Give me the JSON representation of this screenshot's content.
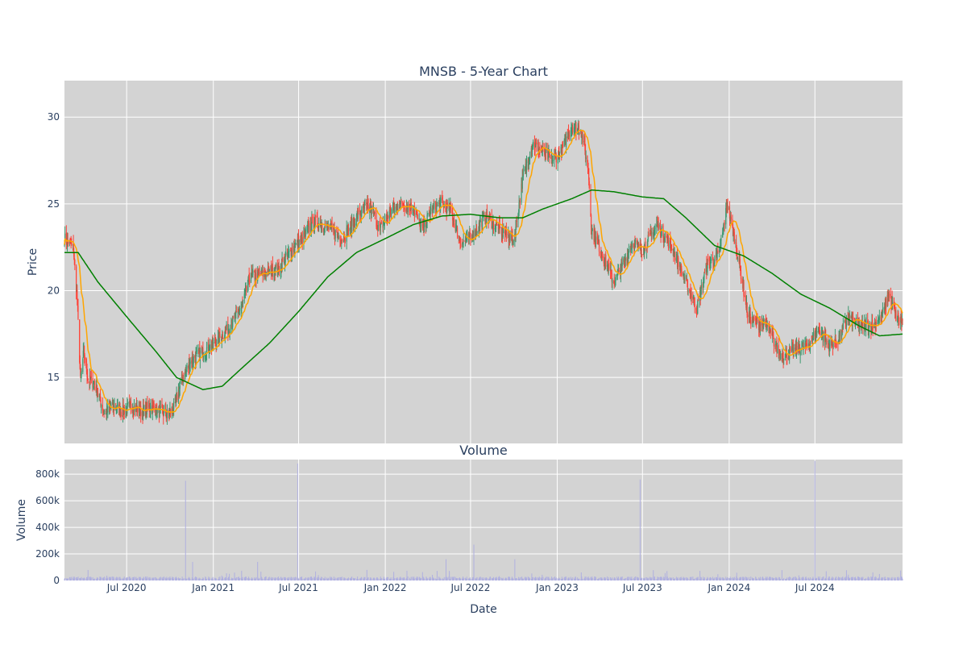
{
  "chart_data": [
    {
      "type": "candlestick",
      "title": "MNSB - 5-Year Chart",
      "ylabel": "Price",
      "x_range": [
        "2020-02-20",
        "2025-01-03"
      ],
      "ylim": [
        11.2,
        32.1
      ],
      "yticks": [
        15,
        20,
        25,
        30
      ],
      "x_tick_dates": [
        "2020-07-01",
        "2021-01-01",
        "2021-07-01",
        "2022-01-01",
        "2022-07-01",
        "2023-01-01",
        "2023-07-01",
        "2024-01-01",
        "2024-07-01"
      ],
      "grid": true,
      "colors": {
        "increasing": "#3d9970",
        "decreasing": "#ff4136",
        "ma_short": "#ffa500",
        "ma_long": "#008000",
        "background": "#d3d3d3",
        "grid": "#ffffff"
      },
      "close_path": [
        [
          "2020-02-20",
          23.0
        ],
        [
          "2020-03-01",
          22.8
        ],
        [
          "2020-03-10",
          22.4
        ],
        [
          "2020-03-18",
          19.5
        ],
        [
          "2020-03-25",
          14.8
        ],
        [
          "2020-04-01",
          16.5
        ],
        [
          "2020-04-10",
          14.9
        ],
        [
          "2020-04-25",
          14.6
        ],
        [
          "2020-05-15",
          12.9
        ],
        [
          "2020-06-01",
          13.4
        ],
        [
          "2020-06-20",
          13.0
        ],
        [
          "2020-07-10",
          13.4
        ],
        [
          "2020-08-01",
          13.0
        ],
        [
          "2020-08-20",
          13.3
        ],
        [
          "2020-09-10",
          13.0
        ],
        [
          "2020-09-25",
          12.8
        ],
        [
          "2020-10-10",
          13.3
        ],
        [
          "2020-10-25",
          14.8
        ],
        [
          "2020-11-15",
          16.0
        ],
        [
          "2020-12-10",
          16.5
        ],
        [
          "2021-01-05",
          17.0
        ],
        [
          "2021-02-01",
          17.8
        ],
        [
          "2021-03-01",
          19.0
        ],
        [
          "2021-03-20",
          20.8
        ],
        [
          "2021-04-20",
          21.0
        ],
        [
          "2021-05-20",
          21.3
        ],
        [
          "2021-06-20",
          22.5
        ],
        [
          "2021-07-10",
          23.0
        ],
        [
          "2021-08-01",
          24.0
        ],
        [
          "2021-09-01",
          23.7
        ],
        [
          "2021-10-01",
          23.0
        ],
        [
          "2021-11-01",
          24.2
        ],
        [
          "2021-11-20",
          24.8
        ],
        [
          "2021-12-05",
          24.6
        ],
        [
          "2021-12-20",
          23.5
        ],
        [
          "2022-01-10",
          24.5
        ],
        [
          "2022-02-01",
          25.0
        ],
        [
          "2022-03-01",
          24.8
        ],
        [
          "2022-03-20",
          23.5
        ],
        [
          "2022-04-10",
          24.7
        ],
        [
          "2022-05-01",
          25.0
        ],
        [
          "2022-05-20",
          24.6
        ],
        [
          "2022-06-10",
          22.8
        ],
        [
          "2022-07-01",
          23.0
        ],
        [
          "2022-08-01",
          24.3
        ],
        [
          "2022-09-01",
          23.5
        ],
        [
          "2022-10-01",
          22.9
        ],
        [
          "2022-10-20",
          26.5
        ],
        [
          "2022-11-10",
          28.5
        ],
        [
          "2022-12-01",
          28.0
        ],
        [
          "2022-12-20",
          27.5
        ],
        [
          "2023-01-10",
          28.0
        ],
        [
          "2023-02-01",
          29.5
        ],
        [
          "2023-02-20",
          29.3
        ],
        [
          "2023-03-08",
          27.0
        ],
        [
          "2023-03-15",
          23.5
        ],
        [
          "2023-04-01",
          22.5
        ],
        [
          "2023-05-01",
          20.5
        ],
        [
          "2023-05-20",
          21.5
        ],
        [
          "2023-06-10",
          22.8
        ],
        [
          "2023-07-01",
          22.3
        ],
        [
          "2023-08-01",
          23.8
        ],
        [
          "2023-09-01",
          22.5
        ],
        [
          "2023-10-01",
          20.5
        ],
        [
          "2023-10-25",
          19.0
        ],
        [
          "2023-11-15",
          21.5
        ],
        [
          "2023-12-10",
          22.0
        ],
        [
          "2023-12-28",
          25.0
        ],
        [
          "2024-01-20",
          22.0
        ],
        [
          "2024-02-10",
          18.5
        ],
        [
          "2024-03-01",
          18.1
        ],
        [
          "2024-03-20",
          18.0
        ],
        [
          "2024-04-20",
          16.2
        ],
        [
          "2024-05-20",
          16.6
        ],
        [
          "2024-06-15",
          16.8
        ],
        [
          "2024-07-10",
          17.8
        ],
        [
          "2024-08-01",
          16.8
        ],
        [
          "2024-08-20",
          17.2
        ],
        [
          "2024-09-10",
          18.5
        ],
        [
          "2024-10-01",
          18.0
        ],
        [
          "2024-11-01",
          18.0
        ],
        [
          "2024-11-20",
          18.5
        ],
        [
          "2024-12-05",
          19.8
        ],
        [
          "2024-12-20",
          18.5
        ],
        [
          "2025-01-03",
          18.2
        ]
      ],
      "ma_long_path": [
        [
          "2020-02-20",
          22.2
        ],
        [
          "2020-03-20",
          22.2
        ],
        [
          "2020-05-01",
          20.5
        ],
        [
          "2020-07-01",
          18.5
        ],
        [
          "2020-09-01",
          16.5
        ],
        [
          "2020-10-15",
          15.0
        ],
        [
          "2020-12-10",
          14.3
        ],
        [
          "2021-01-20",
          14.5
        ],
        [
          "2021-03-01",
          15.5
        ],
        [
          "2021-05-01",
          17.0
        ],
        [
          "2021-07-01",
          18.8
        ],
        [
          "2021-09-01",
          20.8
        ],
        [
          "2021-11-01",
          22.2
        ],
        [
          "2022-01-01",
          23.0
        ],
        [
          "2022-03-01",
          23.8
        ],
        [
          "2022-05-01",
          24.3
        ],
        [
          "2022-07-01",
          24.4
        ],
        [
          "2022-09-01",
          24.2
        ],
        [
          "2022-10-20",
          24.2
        ],
        [
          "2022-12-01",
          24.7
        ],
        [
          "2023-02-01",
          25.3
        ],
        [
          "2023-03-15",
          25.8
        ],
        [
          "2023-05-01",
          25.7
        ],
        [
          "2023-07-01",
          25.4
        ],
        [
          "2023-08-15",
          25.3
        ],
        [
          "2023-10-01",
          24.2
        ],
        [
          "2023-12-01",
          22.6
        ],
        [
          "2024-02-01",
          22.0
        ],
        [
          "2024-04-01",
          21.0
        ],
        [
          "2024-06-01",
          19.8
        ],
        [
          "2024-08-01",
          19.0
        ],
        [
          "2024-10-01",
          18.0
        ],
        [
          "2024-11-15",
          17.4
        ],
        [
          "2025-01-03",
          17.5
        ]
      ]
    },
    {
      "type": "bar",
      "title": "Volume",
      "ylabel": "Volume",
      "xlabel": "Date",
      "ylim": [
        0,
        910000
      ],
      "yticks": [
        0,
        200000,
        400000,
        600000,
        800000
      ],
      "ytick_labels": [
        "0",
        "200k",
        "400k",
        "600k",
        "800k"
      ],
      "x_tick_dates": [
        "2020-07-01",
        "2021-01-01",
        "2021-07-01",
        "2022-01-01",
        "2022-07-01",
        "2023-01-01",
        "2023-07-01",
        "2024-01-01",
        "2024-07-01"
      ],
      "x_tick_labels": [
        "Jul 2020",
        "Jan 2021",
        "Jul 2021",
        "Jan 2022",
        "Jul 2022",
        "Jan 2023",
        "Jul 2023",
        "Jan 2024",
        "Jul 2024"
      ],
      "bar_color": "#b0b0e0",
      "spikes": [
        [
          "2020-11-05",
          750000
        ],
        [
          "2020-11-20",
          140000
        ],
        [
          "2021-04-05",
          140000
        ],
        [
          "2021-07-01",
          880000
        ],
        [
          "2022-05-12",
          160000
        ],
        [
          "2022-07-10",
          270000
        ],
        [
          "2022-10-05",
          160000
        ],
        [
          "2023-06-28",
          760000
        ],
        [
          "2024-07-01",
          900000
        ]
      ]
    }
  ]
}
